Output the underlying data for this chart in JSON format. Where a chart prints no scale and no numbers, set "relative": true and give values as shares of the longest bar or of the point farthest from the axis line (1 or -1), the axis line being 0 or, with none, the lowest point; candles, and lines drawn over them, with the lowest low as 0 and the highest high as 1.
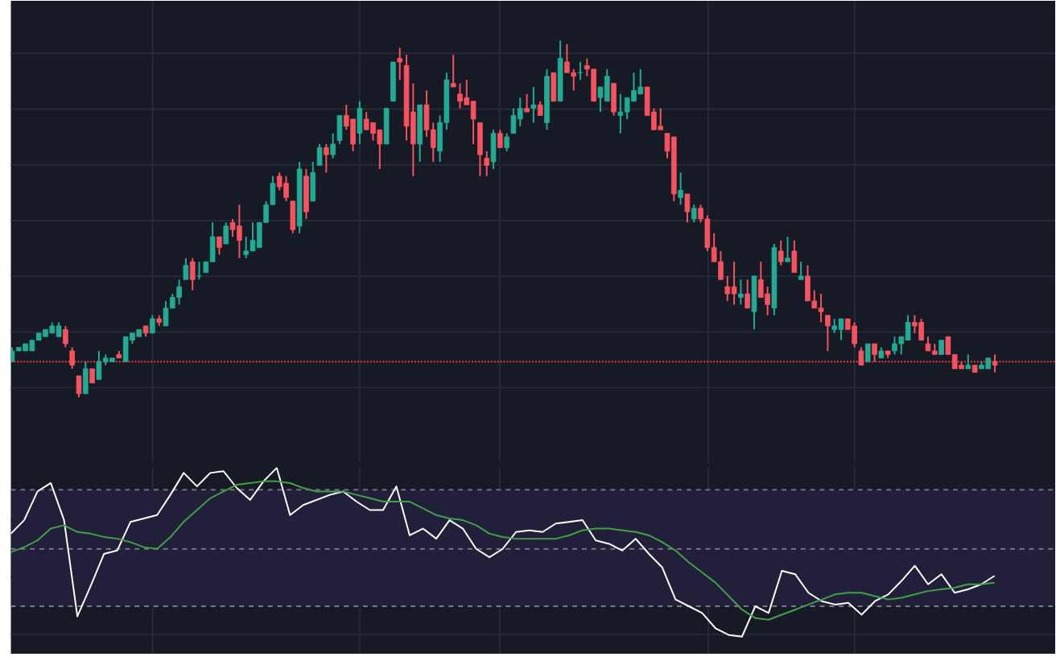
{
  "chart_data": [
    {
      "type": "candlestick",
      "relative": true,
      "grid": true,
      "tick_labels": false,
      "categories": [
        null,
        null,
        null,
        null,
        null,
        null,
        null,
        null,
        null,
        null,
        null,
        null,
        null,
        null,
        null,
        null,
        null,
        null,
        null,
        null,
        null,
        null,
        null,
        null,
        null,
        null,
        null,
        null,
        null,
        null,
        null,
        null,
        null,
        null,
        null,
        null,
        null,
        null,
        null,
        null,
        null,
        null,
        null,
        null,
        null,
        null,
        null,
        null,
        null,
        null,
        null,
        null,
        null,
        null,
        null,
        null,
        null,
        null,
        null,
        null,
        null,
        null,
        null,
        null,
        null,
        null,
        null,
        null,
        null,
        null,
        null,
        null,
        null,
        null,
        null,
        null,
        null,
        null,
        null,
        null,
        null,
        null,
        null,
        null,
        null,
        null,
        null,
        null,
        null,
        null,
        null,
        null,
        null,
        null,
        null,
        null,
        null,
        null,
        null,
        null,
        null,
        null,
        null,
        null,
        null,
        null,
        null,
        null,
        null,
        null,
        null,
        null,
        null,
        null,
        null,
        null,
        null,
        null,
        null,
        null,
        null,
        null,
        null,
        null,
        null,
        null,
        null,
        null,
        null,
        null,
        null,
        null,
        null,
        null,
        null,
        null,
        null,
        null,
        null,
        null,
        null,
        null,
        null,
        null,
        null,
        null,
        null,
        null
      ],
      "ohlc": [
        [
          0.1,
          0.14,
          0.1,
          0.13
        ],
        [
          0.13,
          0.14,
          0.13,
          0.14
        ],
        [
          0.13,
          0.15,
          0.13,
          0.15
        ],
        [
          0.13,
          0.16,
          0.13,
          0.16
        ],
        [
          0.16,
          0.18,
          0.16,
          0.18
        ],
        [
          0.17,
          0.19,
          0.17,
          0.19
        ],
        [
          0.18,
          0.21,
          0.18,
          0.2
        ],
        [
          0.17,
          0.21,
          0.17,
          0.2
        ],
        [
          0.19,
          0.2,
          0.14,
          0.15
        ],
        [
          0.13,
          0.14,
          0.08,
          0.09
        ],
        [
          0.06,
          0.06,
          0.0,
          0.01
        ],
        [
          0.01,
          0.1,
          0.01,
          0.08
        ],
        [
          0.08,
          0.08,
          0.04,
          0.04
        ],
        [
          0.05,
          0.13,
          0.05,
          0.1
        ],
        [
          0.1,
          0.12,
          0.09,
          0.11
        ],
        [
          0.1,
          0.11,
          0.1,
          0.11
        ],
        [
          0.12,
          0.13,
          0.11,
          0.11
        ],
        [
          0.1,
          0.17,
          0.1,
          0.17
        ],
        [
          0.16,
          0.18,
          0.15,
          0.18
        ],
        [
          0.17,
          0.19,
          0.17,
          0.19
        ],
        [
          0.2,
          0.2,
          0.17,
          0.18
        ],
        [
          0.18,
          0.23,
          0.18,
          0.22
        ],
        [
          0.22,
          0.23,
          0.2,
          0.21
        ],
        [
          0.2,
          0.27,
          0.2,
          0.25
        ],
        [
          0.25,
          0.29,
          0.25,
          0.28
        ],
        [
          0.28,
          0.33,
          0.26,
          0.31
        ],
        [
          0.33,
          0.39,
          0.33,
          0.37
        ],
        [
          0.38,
          0.39,
          0.3,
          0.33
        ],
        [
          0.34,
          0.38,
          0.33,
          0.34
        ],
        [
          0.35,
          0.38,
          0.35,
          0.38
        ],
        [
          0.38,
          0.49,
          0.38,
          0.45
        ],
        [
          0.45,
          0.45,
          0.4,
          0.42
        ],
        [
          0.43,
          0.49,
          0.43,
          0.48
        ],
        [
          0.49,
          0.5,
          0.45,
          0.47
        ],
        [
          0.48,
          0.54,
          0.39,
          0.44
        ],
        [
          0.4,
          0.45,
          0.39,
          0.41
        ],
        [
          0.41,
          0.49,
          0.41,
          0.44
        ],
        [
          0.42,
          0.49,
          0.42,
          0.49
        ],
        [
          0.49,
          0.55,
          0.49,
          0.54
        ],
        [
          0.54,
          0.62,
          0.54,
          0.6
        ],
        [
          0.62,
          0.63,
          0.58,
          0.59
        ],
        [
          0.6,
          0.62,
          0.55,
          0.56
        ],
        [
          0.55,
          0.55,
          0.46,
          0.47
        ],
        [
          0.48,
          0.66,
          0.46,
          0.64
        ],
        [
          0.62,
          0.64,
          0.5,
          0.52
        ],
        [
          0.55,
          0.66,
          0.55,
          0.63
        ],
        [
          0.65,
          0.71,
          0.65,
          0.7
        ],
        [
          0.7,
          0.71,
          0.63,
          0.68
        ],
        [
          0.68,
          0.74,
          0.67,
          0.71
        ],
        [
          0.72,
          0.79,
          0.71,
          0.79
        ],
        [
          0.79,
          0.82,
          0.75,
          0.76
        ],
        [
          0.78,
          0.78,
          0.69,
          0.71
        ],
        [
          0.74,
          0.83,
          0.71,
          0.81
        ],
        [
          0.78,
          0.8,
          0.75,
          0.75
        ],
        [
          0.77,
          0.77,
          0.72,
          0.74
        ],
        [
          0.75,
          0.75,
          0.64,
          0.71
        ],
        [
          0.71,
          0.81,
          0.71,
          0.81
        ],
        [
          0.83,
          0.94,
          0.83,
          0.94
        ],
        [
          0.95,
          0.98,
          0.89,
          0.94
        ],
        [
          0.93,
          0.96,
          0.72,
          0.76
        ],
        [
          0.8,
          0.88,
          0.62,
          0.71
        ],
        [
          0.71,
          0.82,
          0.66,
          0.82
        ],
        [
          0.82,
          0.86,
          0.73,
          0.75
        ],
        [
          0.75,
          0.77,
          0.66,
          0.7
        ],
        [
          0.69,
          0.79,
          0.66,
          0.77
        ],
        [
          0.77,
          0.91,
          0.75,
          0.89
        ],
        [
          0.88,
          0.96,
          0.87,
          0.87
        ],
        [
          0.85,
          0.88,
          0.81,
          0.83
        ],
        [
          0.84,
          0.89,
          0.82,
          0.82
        ],
        [
          0.83,
          0.83,
          0.71,
          0.78
        ],
        [
          0.77,
          0.77,
          0.62,
          0.68
        ],
        [
          0.67,
          0.69,
          0.62,
          0.65
        ],
        [
          0.66,
          0.75,
          0.64,
          0.74
        ],
        [
          0.74,
          0.75,
          0.7,
          0.7
        ],
        [
          0.7,
          0.74,
          0.69,
          0.73
        ],
        [
          0.74,
          0.81,
          0.74,
          0.79
        ],
        [
          0.78,
          0.84,
          0.76,
          0.81
        ],
        [
          0.81,
          0.85,
          0.8,
          0.8
        ],
        [
          0.81,
          0.87,
          0.77,
          0.82
        ],
        [
          0.82,
          0.83,
          0.79,
          0.79
        ],
        [
          0.77,
          0.92,
          0.75,
          0.9
        ],
        [
          0.91,
          0.91,
          0.83,
          0.83
        ],
        [
          0.83,
          1.0,
          0.83,
          0.95
        ],
        [
          0.94,
          0.99,
          0.91,
          0.91
        ],
        [
          0.91,
          0.92,
          0.86,
          0.9
        ],
        [
          0.91,
          0.94,
          0.89,
          0.91
        ],
        [
          0.93,
          0.95,
          0.9,
          0.92
        ],
        [
          0.92,
          0.92,
          0.83,
          0.83
        ],
        [
          0.84,
          0.87,
          0.8,
          0.87
        ],
        [
          0.83,
          0.92,
          0.83,
          0.9
        ],
        [
          0.88,
          0.88,
          0.79,
          0.8
        ],
        [
          0.79,
          0.85,
          0.74,
          0.8
        ],
        [
          0.8,
          0.84,
          0.78,
          0.84
        ],
        [
          0.83,
          0.91,
          0.83,
          0.86
        ],
        [
          0.85,
          0.92,
          0.85,
          0.87
        ],
        [
          0.87,
          0.87,
          0.79,
          0.79
        ],
        [
          0.8,
          0.81,
          0.75,
          0.75
        ],
        [
          0.76,
          0.81,
          0.75,
          0.75
        ],
        [
          0.74,
          0.74,
          0.67,
          0.69
        ],
        [
          0.73,
          0.73,
          0.55,
          0.57
        ],
        [
          0.56,
          0.63,
          0.54,
          0.58
        ],
        [
          0.57,
          0.57,
          0.49,
          0.52
        ],
        [
          0.5,
          0.54,
          0.49,
          0.53
        ],
        [
          0.53,
          0.54,
          0.49,
          0.5
        ],
        [
          0.5,
          0.51,
          0.41,
          0.42
        ],
        [
          0.42,
          0.46,
          0.38,
          0.38
        ],
        [
          0.38,
          0.41,
          0.33,
          0.33
        ],
        [
          0.31,
          0.34,
          0.27,
          0.29
        ],
        [
          0.31,
          0.38,
          0.26,
          0.29
        ],
        [
          0.28,
          0.33,
          0.26,
          0.29
        ],
        [
          0.29,
          0.33,
          0.25,
          0.25
        ],
        [
          0.24,
          0.34,
          0.19,
          0.34
        ],
        [
          0.33,
          0.38,
          0.28,
          0.28
        ],
        [
          0.29,
          0.31,
          0.23,
          0.26
        ],
        [
          0.25,
          0.43,
          0.23,
          0.42
        ],
        [
          0.41,
          0.44,
          0.37,
          0.38
        ],
        [
          0.38,
          0.45,
          0.38,
          0.39
        ],
        [
          0.41,
          0.44,
          0.35,
          0.35
        ],
        [
          0.33,
          0.38,
          0.33,
          0.34
        ],
        [
          0.34,
          0.37,
          0.27,
          0.27
        ],
        [
          0.27,
          0.3,
          0.25,
          0.25
        ],
        [
          0.25,
          0.29,
          0.21,
          0.24
        ],
        [
          0.23,
          0.23,
          0.13,
          0.2
        ],
        [
          0.19,
          0.22,
          0.18,
          0.2
        ],
        [
          0.19,
          0.22,
          0.16,
          0.22
        ],
        [
          0.22,
          0.22,
          0.19,
          0.19
        ],
        [
          0.2,
          0.21,
          0.14,
          0.15
        ],
        [
          0.13,
          0.14,
          0.09,
          0.09
        ],
        [
          0.1,
          0.15,
          0.1,
          0.15
        ],
        [
          0.15,
          0.15,
          0.1,
          0.12
        ],
        [
          0.11,
          0.14,
          0.11,
          0.13
        ],
        [
          0.13,
          0.13,
          0.11,
          0.12
        ],
        [
          0.13,
          0.17,
          0.12,
          0.15
        ],
        [
          0.15,
          0.17,
          0.12,
          0.17
        ],
        [
          0.16,
          0.23,
          0.16,
          0.21
        ],
        [
          0.21,
          0.23,
          0.18,
          0.2
        ],
        [
          0.21,
          0.22,
          0.16,
          0.16
        ],
        [
          0.15,
          0.17,
          0.13,
          0.13
        ],
        [
          0.13,
          0.15,
          0.12,
          0.12
        ],
        [
          0.12,
          0.16,
          0.12,
          0.16
        ],
        [
          0.17,
          0.17,
          0.12,
          0.12
        ],
        [
          0.12,
          0.12,
          0.08,
          0.08
        ],
        [
          0.09,
          0.1,
          0.08,
          0.08
        ],
        [
          0.08,
          0.12,
          0.08,
          0.09
        ],
        [
          0.09,
          0.09,
          0.07,
          0.07
        ],
        [
          0.08,
          0.1,
          0.08,
          0.09
        ],
        [
          0.08,
          0.11,
          0.08,
          0.11
        ],
        [
          0.1,
          0.12,
          0.07,
          0.09
        ]
      ],
      "ref_lines": [
        {
          "axis": "y",
          "value": 0.1,
          "color": "#f23645",
          "line_style": "dotted"
        }
      ]
    },
    {
      "type": "line",
      "relative": true,
      "grid": true,
      "tick_labels": false,
      "categories": [
        null,
        null,
        null,
        null,
        null,
        null,
        null,
        null,
        null,
        null,
        null,
        null,
        null,
        null,
        null,
        null,
        null,
        null,
        null,
        null,
        null,
        null,
        null,
        null,
        null,
        null,
        null,
        null,
        null,
        null,
        null,
        null,
        null,
        null,
        null,
        null,
        null,
        null,
        null,
        null,
        null,
        null,
        null,
        null,
        null,
        null,
        null,
        null,
        null,
        null,
        null,
        null,
        null,
        null,
        null,
        null,
        null,
        null,
        null,
        null,
        null,
        null,
        null,
        null,
        null,
        null,
        null,
        null,
        null,
        null,
        null,
        null,
        null,
        null,
        null
      ],
      "series": [
        {
          "color": "#ffffff",
          "values": [
            0.61,
            0.69,
            0.86,
            0.91,
            0.69,
            0.12,
            0.3,
            0.49,
            0.51,
            0.68,
            0.7,
            0.72,
            0.84,
            0.97,
            0.89,
            0.97,
            0.98,
            0.88,
            0.81,
            0.92,
            1.0,
            0.72,
            0.78,
            0.81,
            0.84,
            0.86,
            0.8,
            0.75,
            0.75,
            0.89,
            0.6,
            0.64,
            0.58,
            0.69,
            0.64,
            0.52,
            0.47,
            0.52,
            0.62,
            0.63,
            0.62,
            0.67,
            0.68,
            0.69,
            0.57,
            0.55,
            0.51,
            0.58,
            0.49,
            0.41,
            0.22,
            0.18,
            0.14,
            0.05,
            0.01,
            0.0,
            0.18,
            0.14,
            0.39,
            0.37,
            0.26,
            0.21,
            0.19,
            0.2,
            0.13,
            0.21,
            0.25,
            0.33,
            0.42,
            0.31,
            0.37,
            0.26,
            0.28,
            0.31,
            0.36
          ]
        },
        {
          "color": "#43a047",
          "values": [
            0.5,
            0.53,
            0.57,
            0.64,
            0.66,
            0.62,
            0.61,
            0.59,
            0.58,
            0.56,
            0.53,
            0.52,
            0.59,
            0.68,
            0.75,
            0.82,
            0.86,
            0.9,
            0.91,
            0.92,
            0.92,
            0.91,
            0.88,
            0.86,
            0.86,
            0.86,
            0.84,
            0.82,
            0.8,
            0.8,
            0.8,
            0.76,
            0.72,
            0.7,
            0.69,
            0.66,
            0.61,
            0.59,
            0.58,
            0.58,
            0.58,
            0.58,
            0.6,
            0.63,
            0.64,
            0.64,
            0.63,
            0.62,
            0.6,
            0.56,
            0.51,
            0.44,
            0.38,
            0.32,
            0.24,
            0.16,
            0.11,
            0.1,
            0.13,
            0.16,
            0.19,
            0.22,
            0.25,
            0.26,
            0.26,
            0.24,
            0.22,
            0.23,
            0.25,
            0.27,
            0.28,
            0.29,
            0.31,
            0.31,
            0.32
          ]
        }
      ],
      "ref_lines": [
        {
          "axis": "y",
          "value": 0.87,
          "color": "#787b86",
          "line_style": "dashed"
        },
        {
          "axis": "y",
          "value": 0.52,
          "color": "#787b86",
          "line_style": "dashed"
        },
        {
          "axis": "y",
          "value": 0.18,
          "color": "#787b86",
          "line_style": "dashed"
        }
      ],
      "bands": [
        {
          "axis": "y",
          "from": 0.18,
          "to": 0.87,
          "color": "#221f3a"
        }
      ]
    }
  ]
}
